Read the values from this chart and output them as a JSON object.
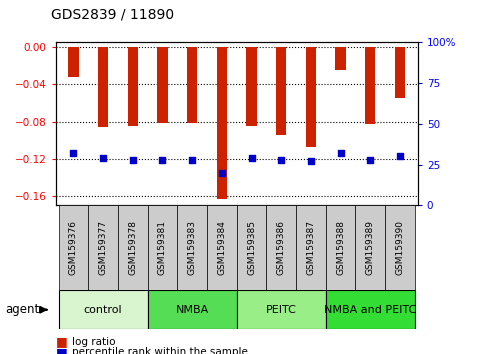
{
  "title": "GDS2839 / 11890",
  "samples": [
    "GSM159376",
    "GSM159377",
    "GSM159378",
    "GSM159381",
    "GSM159383",
    "GSM159384",
    "GSM159385",
    "GSM159386",
    "GSM159387",
    "GSM159388",
    "GSM159389",
    "GSM159390"
  ],
  "log_ratios": [
    -0.032,
    -0.086,
    -0.085,
    -0.082,
    -0.082,
    -0.163,
    -0.085,
    -0.094,
    -0.107,
    -0.025,
    -0.083,
    -0.055
  ],
  "percentile_ranks": [
    32,
    29,
    28,
    28,
    28,
    20,
    29,
    28,
    27,
    32,
    28,
    30
  ],
  "agents": [
    {
      "label": "control",
      "start": 0,
      "end": 3
    },
    {
      "label": "NMBA",
      "start": 3,
      "end": 6
    },
    {
      "label": "PEITC",
      "start": 6,
      "end": 9
    },
    {
      "label": "NMBA and PEITC",
      "start": 9,
      "end": 12
    }
  ],
  "agent_colors": [
    "#d8f5d0",
    "#55dd55",
    "#99ee88",
    "#33dd33"
  ],
  "ylim_left": [
    -0.17,
    0.005
  ],
  "ylim_right": [
    0,
    100
  ],
  "yticks_left": [
    0.0,
    -0.04,
    -0.08,
    -0.12,
    -0.16
  ],
  "yticks_right": [
    0,
    25,
    50,
    75,
    100
  ],
  "bar_color": "#cc2200",
  "percentile_color": "#0000cc",
  "bar_width": 0.35,
  "legend_log_ratio": "log ratio",
  "legend_percentile": "percentile rank within the sample"
}
